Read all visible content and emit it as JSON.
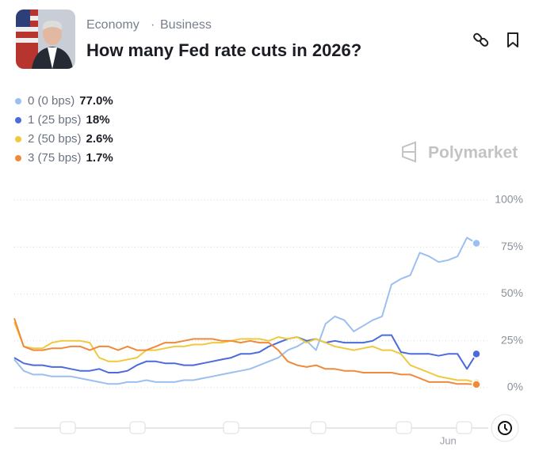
{
  "header": {
    "category": "Economy",
    "subcategory": "Business",
    "title": "How many Fed rate cuts in 2026?"
  },
  "brand": "Polymarket",
  "chart_data": {
    "type": "line",
    "categories": [
      null,
      null,
      null,
      null,
      null,
      null,
      null,
      null,
      null,
      null,
      null,
      null,
      null,
      null,
      null,
      null,
      null,
      null,
      null,
      null,
      null,
      null,
      null,
      null,
      null,
      null,
      null,
      null,
      null,
      null,
      null,
      null,
      null,
      null,
      null,
      null,
      null,
      null,
      null,
      null,
      null,
      null,
      null,
      null,
      null,
      null,
      "Jun",
      null,
      null,
      null
    ],
    "series": [
      {
        "name": "0 (0 bps)",
        "current_label": "77.0%",
        "color": "#9cbff0",
        "values": [
          15,
          9,
          7,
          7,
          6,
          6,
          6,
          5,
          4,
          3,
          2,
          2,
          3,
          3,
          4,
          3,
          3,
          3,
          4,
          4,
          5,
          6,
          7,
          8,
          9,
          10,
          12,
          14,
          16,
          20,
          22,
          25,
          20,
          34,
          38,
          36,
          30,
          33,
          36,
          38,
          55,
          58,
          60,
          72,
          70,
          67,
          68,
          70,
          80,
          77
        ]
      },
      {
        "name": "1 (25 bps)",
        "current_label": "18%",
        "color": "#4b6bdb",
        "values": [
          16,
          13,
          12,
          12,
          11,
          11,
          10,
          9,
          9,
          10,
          8,
          8,
          9,
          12,
          14,
          14,
          13,
          13,
          12,
          12,
          13,
          14,
          15,
          16,
          18,
          18,
          19,
          22,
          24,
          26,
          27,
          25,
          26,
          24,
          25,
          24,
          24,
          24,
          25,
          28,
          28,
          19,
          18,
          18,
          18,
          17,
          18,
          18,
          10,
          18
        ]
      },
      {
        "name": "2 (50 bps)",
        "current_label": "2.6%",
        "color": "#efc93f",
        "values": [
          35,
          22,
          21,
          21,
          24,
          25,
          25,
          25,
          24,
          16,
          14,
          14,
          15,
          16,
          20,
          20,
          21,
          22,
          22,
          23,
          23,
          24,
          24,
          25,
          26,
          26,
          26,
          25,
          27,
          26,
          27,
          24,
          26,
          24,
          22,
          21,
          20,
          21,
          22,
          20,
          20,
          18,
          12,
          10,
          8,
          6,
          5,
          4,
          4,
          2.6
        ]
      },
      {
        "name": "3 (75 bps)",
        "current_label": "1.7%",
        "color": "#ef8a3b",
        "values": [
          37,
          22,
          20,
          20,
          21,
          21,
          22,
          22,
          20,
          22,
          22,
          20,
          22,
          20,
          20,
          22,
          24,
          24,
          25,
          26,
          26,
          26,
          25,
          25,
          24,
          25,
          24,
          24,
          20,
          14,
          12,
          11,
          12,
          10,
          10,
          9,
          9,
          8,
          8,
          8,
          8,
          7,
          7,
          5,
          3,
          3,
          3,
          2,
          2,
          1.7
        ]
      }
    ],
    "ylim": [
      0,
      100
    ],
    "yticks": [
      {
        "value": 0,
        "label": "0%"
      },
      {
        "value": 25,
        "label": "25%"
      },
      {
        "value": 50,
        "label": "50%"
      },
      {
        "value": 75,
        "label": "75%"
      },
      {
        "value": 100,
        "label": "100%"
      }
    ],
    "grid": true
  }
}
